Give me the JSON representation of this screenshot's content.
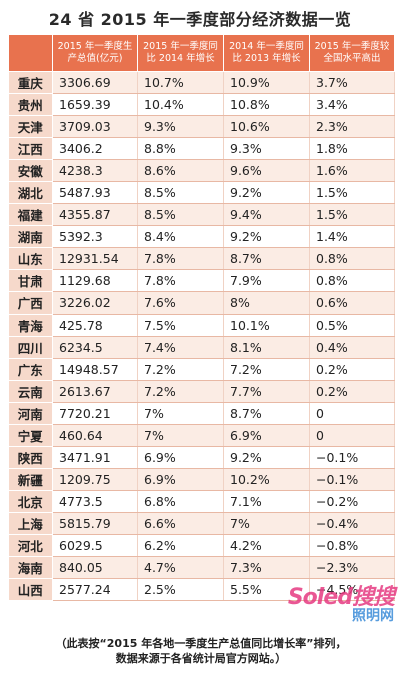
{
  "title": "24 省 2015 年一季度部分经济数据一览",
  "headers": [
    "",
    "2015 年一季度生产总值(亿元)",
    "2015 年一季度同比 2014 年增长",
    "2014 年一季度同比 2013 年增长",
    "2015 年一季度较全国水平高出"
  ],
  "rows": [
    [
      "重庆",
      "3306.69",
      "10.7%",
      "10.9%",
      "3.7%"
    ],
    [
      "贵州",
      "1659.39",
      "10.4%",
      "10.8%",
      "3.4%"
    ],
    [
      "天津",
      "3709.03",
      "9.3%",
      "10.6%",
      "2.3%"
    ],
    [
      "江西",
      "3406.2",
      "8.8%",
      "9.3%",
      "1.8%"
    ],
    [
      "安徽",
      "4238.3",
      "8.6%",
      "9.6%",
      "1.6%"
    ],
    [
      "湖北",
      "5487.93",
      "8.5%",
      "9.2%",
      "1.5%"
    ],
    [
      "福建",
      "4355.87",
      "8.5%",
      "9.4%",
      "1.5%"
    ],
    [
      "湖南",
      "5392.3",
      "8.4%",
      "9.2%",
      "1.4%"
    ],
    [
      "山东",
      "12931.54",
      "7.8%",
      "8.7%",
      "0.8%"
    ],
    [
      "甘肃",
      "1129.68",
      "7.8%",
      "7.9%",
      "0.8%"
    ],
    [
      "广西",
      "3226.02",
      "7.6%",
      "8%",
      "0.6%"
    ],
    [
      "青海",
      "425.78",
      "7.5%",
      "10.1%",
      "0.5%"
    ],
    [
      "四川",
      "6234.5",
      "7.4%",
      "8.1%",
      "0.4%"
    ],
    [
      "广东",
      "14948.57",
      "7.2%",
      "7.2%",
      "0.2%"
    ],
    [
      "云南",
      "2613.67",
      "7.2%",
      "7.7%",
      "0.2%"
    ],
    [
      "河南",
      "7720.21",
      "7%",
      "8.7%",
      "0"
    ],
    [
      "宁夏",
      "460.64",
      "7%",
      "6.9%",
      "0"
    ],
    [
      "陕西",
      "3471.91",
      "6.9%",
      "9.2%",
      "−0.1%"
    ],
    [
      "新疆",
      "1209.75",
      "6.9%",
      "10.2%",
      "−0.1%"
    ],
    [
      "北京",
      "4773.5",
      "6.8%",
      "7.1%",
      "−0.2%"
    ],
    [
      "上海",
      "5815.79",
      "6.6%",
      "7%",
      "−0.4%"
    ],
    [
      "河北",
      "6029.5",
      "6.2%",
      "4.2%",
      "−0.8%"
    ],
    [
      "海南",
      "840.05",
      "4.7%",
      "7.3%",
      "−2.3%"
    ],
    [
      "山西",
      "2577.24",
      "2.5%",
      "5.5%",
      "−4.5%"
    ]
  ],
  "note_line1": "（此表按“2015 年各地一季度生产总值同比增长率”排列，",
  "note_line2": "数据来源于各省统计局官方网站。）",
  "watermark_main": "Soled搜搜",
  "watermark_sub": "照明网"
}
